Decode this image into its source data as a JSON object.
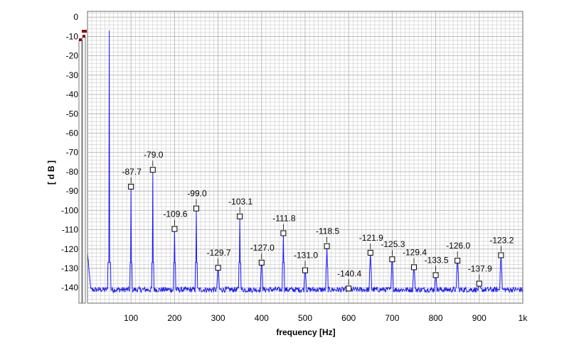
{
  "chart_data": {
    "type": "line",
    "title": "",
    "xlabel": "frequency [Hz]",
    "ylabel": "[ d B ]",
    "xlim": [
      0,
      1000
    ],
    "ylim": [
      -148,
      3
    ],
    "grid": true,
    "x_ticks": [
      {
        "value": 100,
        "label": "100"
      },
      {
        "value": 200,
        "label": "200"
      },
      {
        "value": 300,
        "label": "300"
      },
      {
        "value": 400,
        "label": "400"
      },
      {
        "value": 500,
        "label": "500"
      },
      {
        "value": 600,
        "label": "600"
      },
      {
        "value": 700,
        "label": "700"
      },
      {
        "value": 800,
        "label": "800"
      },
      {
        "value": 900,
        "label": "900"
      },
      {
        "value": 1000,
        "label": "1k"
      }
    ],
    "y_ticks": [
      {
        "value": 0,
        "label": "0"
      },
      {
        "value": -10,
        "label": "-10"
      },
      {
        "value": -20,
        "label": "-20"
      },
      {
        "value": -30,
        "label": "-30"
      },
      {
        "value": -40,
        "label": "-40"
      },
      {
        "value": -50,
        "label": "-50"
      },
      {
        "value": -60,
        "label": "-60"
      },
      {
        "value": -70,
        "label": "-70"
      },
      {
        "value": -80,
        "label": "-80"
      },
      {
        "value": -90,
        "label": "-90"
      },
      {
        "value": -100,
        "label": "-100"
      },
      {
        "value": -110,
        "label": "-110"
      },
      {
        "value": -120,
        "label": "-120"
      },
      {
        "value": -130,
        "label": "-130"
      },
      {
        "value": -140,
        "label": "-140"
      }
    ],
    "noise_floor_db": -141,
    "fundamental": {
      "x": 50,
      "y": -7
    },
    "harmonics": [
      {
        "x": 100,
        "y": -87.7,
        "label": "-87.7"
      },
      {
        "x": 150,
        "y": -79.0,
        "label": "-79.0"
      },
      {
        "x": 200,
        "y": -109.6,
        "label": "-109.6"
      },
      {
        "x": 250,
        "y": -99.0,
        "label": "-99.0"
      },
      {
        "x": 300,
        "y": -129.7,
        "label": "-129.7"
      },
      {
        "x": 350,
        "y": -103.1,
        "label": "-103.1"
      },
      {
        "x": 400,
        "y": -127.0,
        "label": "-127.0"
      },
      {
        "x": 450,
        "y": -111.8,
        "label": "-111.8"
      },
      {
        "x": 500,
        "y": -131.0,
        "label": "-131.0"
      },
      {
        "x": 550,
        "y": -118.5,
        "label": "-118.5"
      },
      {
        "x": 600,
        "y": -140.4,
        "label": "-140.4"
      },
      {
        "x": 650,
        "y": -121.9,
        "label": "-121.9"
      },
      {
        "x": 700,
        "y": -125.3,
        "label": "-125.3"
      },
      {
        "x": 750,
        "y": -129.4,
        "label": "-129.4"
      },
      {
        "x": 800,
        "y": -133.5,
        "label": "-133.5"
      },
      {
        "x": 850,
        "y": -126.0,
        "label": "-126.0"
      },
      {
        "x": 900,
        "y": -137.9,
        "label": "-137.9"
      },
      {
        "x": 950,
        "y": -123.2,
        "label": "-123.2"
      }
    ],
    "colors": {
      "trace": "#1a1aff",
      "grid": "#b4b4b4",
      "border": "#6e6e6e",
      "marker": "#000000",
      "level_meter": "#8b0000"
    }
  }
}
